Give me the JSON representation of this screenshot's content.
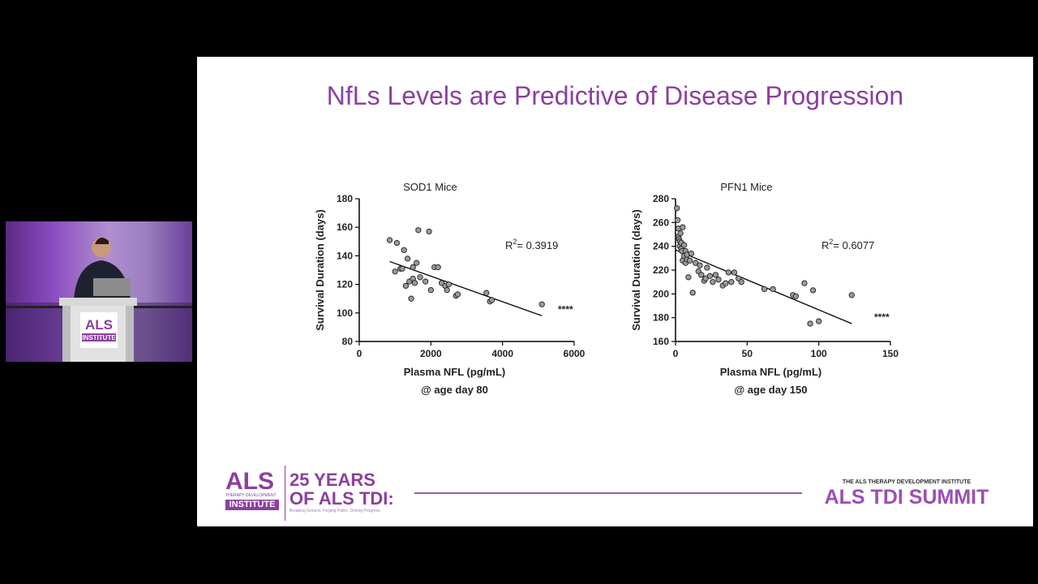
{
  "slide": {
    "title": "NfLs Levels are Predictive of Disease Progression"
  },
  "logo": {
    "als": "ALS",
    "therapy_dev": "THERAPY DEVELOPMENT",
    "institute": "INSTITUTE"
  },
  "podium_logo": {
    "als": "ALS",
    "institute": "INSTITUTE"
  },
  "footer": {
    "years_line1": "25 YEARS",
    "years_line2": "OF ALS TDI:",
    "tagline": "Breaking Ground. Forging Paths. Driving Progress.",
    "summit_small": "THE ALS THERAPY DEVELOPMENT INSTITUTE",
    "summit_big": "ALS TDI SUMMIT"
  },
  "colors": {
    "accent": "#8c3fa0",
    "footer_purple": "#9b59b6",
    "point_fill": "#9a9a9a"
  },
  "chart_data": [
    {
      "type": "scatter",
      "title": "SOD1 Mice",
      "xlabel": "Plasma NFL (pg/mL)",
      "sublabel": "@ age day 80",
      "ylabel": "Survival Duration (days)",
      "xlim": [
        0,
        6000
      ],
      "ylim": [
        80,
        180
      ],
      "xticks": [
        0,
        2000,
        4000,
        6000
      ],
      "yticks": [
        80,
        100,
        120,
        140,
        160,
        180
      ],
      "r2_label": "R",
      "r2_sup": "2",
      "r2_value": "= 0.3919",
      "significance": "****",
      "fit": [
        [
          850,
          136
        ],
        [
          5100,
          98
        ]
      ],
      "x": [
        850,
        1000,
        1050,
        1150,
        1200,
        1250,
        1300,
        1350,
        1400,
        1450,
        1500,
        1500,
        1550,
        1600,
        1650,
        1700,
        1850,
        1950,
        2000,
        2100,
        2200,
        2300,
        2400,
        2450,
        2500,
        2700,
        2750,
        3550,
        3650,
        3700,
        5100
      ],
      "y": [
        151,
        129,
        149,
        131,
        131,
        144,
        119,
        138,
        122,
        110,
        124,
        132,
        121,
        135,
        158,
        125,
        122,
        157,
        116,
        132,
        132,
        121,
        119,
        116,
        120,
        112,
        113,
        114,
        108,
        109,
        106
      ]
    },
    {
      "type": "scatter",
      "title": "PFN1 Mice",
      "xlabel": "Plasma NFL (pg/mL)",
      "sublabel": "@ age day 150",
      "ylabel": "Survival Duration (days)",
      "xlim": [
        0,
        150
      ],
      "ylim": [
        160,
        280
      ],
      "xticks": [
        0,
        50,
        100,
        150
      ],
      "yticks": [
        160,
        180,
        200,
        220,
        240,
        260,
        280
      ],
      "r2_label": "R",
      "r2_sup": "2",
      "r2_value": "= 0.6077",
      "significance": "****",
      "fit": [
        [
          0,
          237
        ],
        [
          123,
          175
        ]
      ],
      "x": [
        1,
        1.5,
        2,
        2,
        2.5,
        3,
        3,
        3.5,
        4,
        4,
        4.5,
        5,
        5,
        6,
        6,
        7,
        7,
        8,
        8,
        9,
        10,
        11,
        12,
        14,
        16,
        17,
        18,
        20,
        21,
        22,
        24,
        26,
        28,
        30,
        33,
        35,
        37,
        39,
        41,
        44,
        46,
        62,
        68,
        82,
        84,
        90,
        94,
        96,
        100,
        123
      ],
      "y": [
        272,
        262,
        255,
        248,
        246,
        244,
        240,
        251,
        238,
        243,
        236,
        256,
        228,
        241,
        232,
        226,
        236,
        229,
        233,
        214,
        228,
        234,
        201,
        226,
        219,
        224,
        216,
        211,
        213,
        222,
        215,
        210,
        216,
        212,
        207,
        209,
        218,
        210,
        218,
        213,
        210,
        204,
        204,
        199,
        198,
        209,
        175,
        203,
        177,
        199
      ]
    }
  ]
}
